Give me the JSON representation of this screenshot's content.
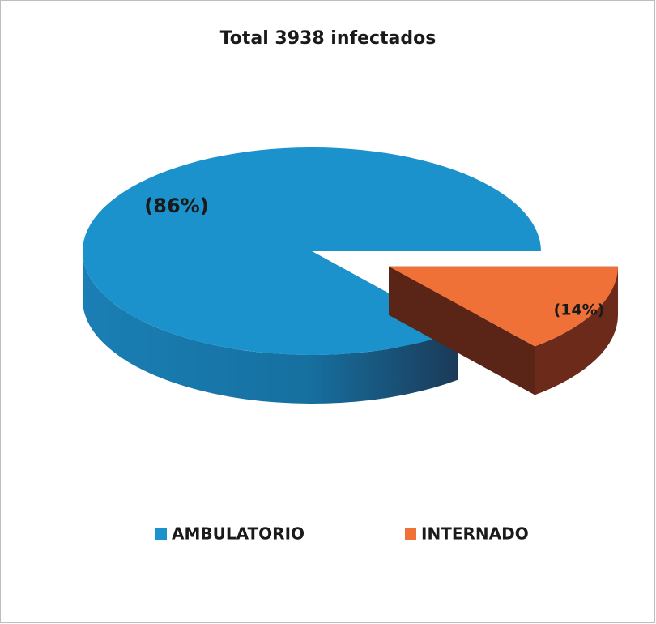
{
  "chart_data": {
    "type": "pie3d",
    "title": "Total 3938 infectados",
    "categories": [
      "AMBULATORIO",
      "INTERNADO"
    ],
    "values": [
      86,
      14
    ],
    "value_labels": [
      "(86%)",
      "(14%)"
    ],
    "colors": [
      "#1b92cc",
      "#f07138"
    ],
    "legend": "bottom"
  }
}
